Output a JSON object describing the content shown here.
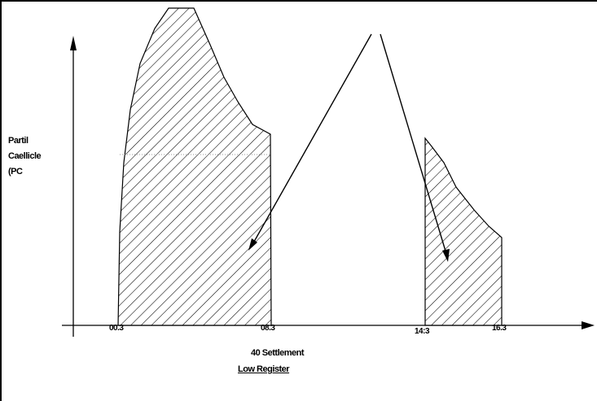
{
  "y_axis": {
    "label_lines": [
      "Partil",
      "Caellicle",
      "(PC"
    ]
  },
  "x_axis": {
    "ticks": [
      "00.3",
      "08.3",
      "14:3",
      "16.3"
    ],
    "label": "40 Settlement",
    "sublabel": "Low Register"
  },
  "colors": {
    "stroke": "#000000",
    "background": "#ffffff"
  }
}
